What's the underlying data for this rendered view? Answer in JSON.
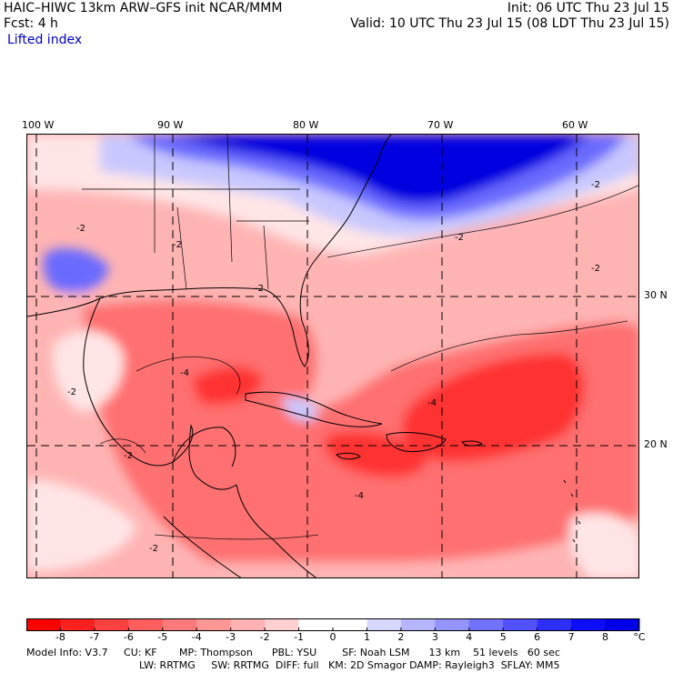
{
  "title": {
    "model_line": "HAIC–HIWC 13km ARW–GFS init    NCAR/MMM",
    "forecast_line": "Fcst:      4 h",
    "field_name": "Lifted index",
    "init_line": "Init: 06 UTC Thu 23 Jul 15",
    "valid_line": "Valid: 10 UTC Thu 23 Jul 15 (08 LDT Thu 23 Jul 15)"
  },
  "map": {
    "lon_ticks": [
      "100 W",
      "90 W",
      "80 W",
      "70 W",
      "60 W"
    ],
    "lat_ticks": [
      "30 N",
      "20 N"
    ],
    "contour_labels": [
      "-2",
      "-2",
      "-2",
      "-2",
      "-2",
      "-2",
      "-4",
      "-2",
      "-4",
      "-2",
      "-4",
      "-2"
    ],
    "colors": {
      "strong_stable": "#0000e0",
      "stable": "#6a6aff",
      "weak_stable": "#c8c8ff",
      "neutral": "#ffe6e6",
      "weak_unstable": "#ffb4b4",
      "unstable": "#ff7070",
      "strong_unstable": "#ff3030"
    }
  },
  "colorbar": {
    "labels": [
      "-8",
      "-7",
      "-6",
      "-5",
      "-4",
      "-3",
      "-2",
      "-1",
      "0",
      "1",
      "2",
      "3",
      "4",
      "5",
      "6",
      "7",
      "8"
    ],
    "unit": "°C",
    "colors": [
      "#ff0000",
      "#ff2020",
      "#ff4040",
      "#ff5e5e",
      "#ff7a7a",
      "#ff9696",
      "#ffb2b2",
      "#ffd0d0",
      "#ffffff",
      "#ffffff",
      "#d8d8ff",
      "#b6b6ff",
      "#9494ff",
      "#7272ff",
      "#5050ff",
      "#2e2eff",
      "#0c0cff",
      "#0000e8"
    ]
  },
  "footer": {
    "line1": "Model Info: V3.7     CU: KF       MP: Thompson      PBL: YSU        SF: Noah LSM      13 km    51 levels   60 sec",
    "line2": "LW: RRTMG     SW: RRTMG  DIFF: full   KM: 2D Smagor DAMP: Rayleigh3  SFLAY: MM5"
  }
}
